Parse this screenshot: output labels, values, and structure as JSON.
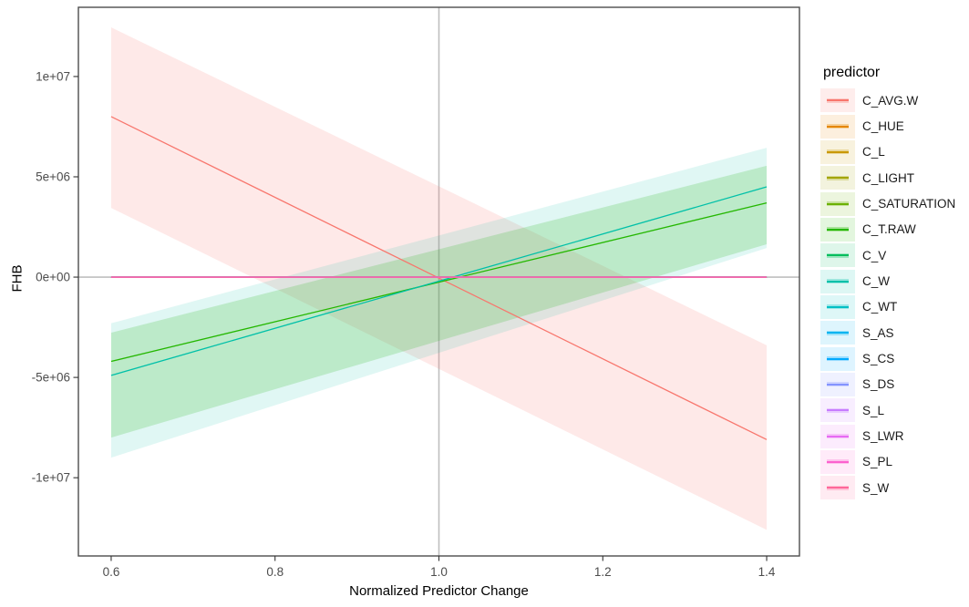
{
  "chart_data": {
    "type": "line",
    "title": "",
    "xlabel": "Normalized Predictor Change",
    "ylabel": "FHB",
    "x_ticks": [
      0.6,
      0.8,
      1.0,
      1.2,
      1.4
    ],
    "x_tick_labels": [
      "0.6",
      "0.8",
      "1.0",
      "1.2",
      "1.4"
    ],
    "y_ticks": [
      10000000,
      5000000,
      0,
      -5000000,
      -10000000
    ],
    "y_tick_labels": [
      "1e+07",
      "5e+06",
      "0e+00",
      "-5e+06",
      "-1e+07"
    ],
    "xlim": [
      0.56,
      1.44
    ],
    "ylim": [
      -13900000,
      13450000
    ],
    "x_data_range": [
      0.6,
      1.4
    ],
    "grid": false,
    "reference_lines": {
      "vline_x": 1.0,
      "hline_y": 0
    },
    "legend": {
      "title": "predictor",
      "position": "right"
    },
    "series": [
      {
        "name": "C_AVG.W",
        "color": "#F8766D",
        "x": [
          0.6,
          1.4
        ],
        "y": [
          8000000,
          -8100000
        ],
        "ribbon_upper": [
          12450000,
          -3400000
        ],
        "ribbon_lower": [
          3450000,
          -12600000
        ],
        "ribbon_alpha": 0.16
      },
      {
        "name": "C_HUE",
        "color": "#E58700",
        "x": [
          0.6,
          1.4
        ],
        "y": [
          0,
          0
        ],
        "ribbon_upper": null,
        "ribbon_lower": null,
        "ribbon_alpha": null
      },
      {
        "name": "C_L",
        "color": "#C99800",
        "x": [
          0.6,
          1.4
        ],
        "y": [
          0,
          0
        ],
        "ribbon_upper": null,
        "ribbon_lower": null,
        "ribbon_alpha": null
      },
      {
        "name": "C_LIGHT",
        "color": "#A3A500",
        "x": [
          0.6,
          1.4
        ],
        "y": [
          0,
          0
        ],
        "ribbon_upper": null,
        "ribbon_lower": null,
        "ribbon_alpha": null
      },
      {
        "name": "C_SATURATION",
        "color": "#6BB100",
        "x": [
          0.6,
          1.4
        ],
        "y": [
          0,
          0
        ],
        "ribbon_upper": null,
        "ribbon_lower": null,
        "ribbon_alpha": null
      },
      {
        "name": "C_T.RAW",
        "color": "#24B700",
        "x": [
          0.6,
          1.4
        ],
        "y": [
          -4200000,
          3700000
        ],
        "ribbon_upper": [
          -2770000,
          5550000
        ],
        "ribbon_lower": [
          -8000000,
          1640000
        ],
        "ribbon_alpha": 0.19
      },
      {
        "name": "C_V",
        "color": "#00BD5C",
        "x": [
          0.6,
          1.4
        ],
        "y": [
          0,
          0
        ],
        "ribbon_upper": null,
        "ribbon_lower": null,
        "ribbon_alpha": null
      },
      {
        "name": "C_W",
        "color": "#00C0A8",
        "x": [
          0.6,
          1.4
        ],
        "y": [
          -4900000,
          4500000
        ],
        "ribbon_upper": [
          -2300000,
          6450000
        ],
        "ribbon_lower": [
          -9000000,
          1450000
        ],
        "ribbon_alpha": 0.12
      },
      {
        "name": "C_WT",
        "color": "#00BFC4",
        "x": [
          0.6,
          1.4
        ],
        "y": [
          0,
          0
        ],
        "ribbon_upper": null,
        "ribbon_lower": null,
        "ribbon_alpha": null
      },
      {
        "name": "S_AS",
        "color": "#00B4F1",
        "x": [
          0.6,
          1.4
        ],
        "y": [
          0,
          0
        ],
        "ribbon_upper": null,
        "ribbon_lower": null,
        "ribbon_alpha": null
      },
      {
        "name": "S_CS",
        "color": "#00A9FF",
        "x": [
          0.6,
          1.4
        ],
        "y": [
          0,
          0
        ],
        "ribbon_upper": null,
        "ribbon_lower": null,
        "ribbon_alpha": null
      },
      {
        "name": "S_DS",
        "color": "#8494FF",
        "x": [
          0.6,
          1.4
        ],
        "y": [
          0,
          0
        ],
        "ribbon_upper": null,
        "ribbon_lower": null,
        "ribbon_alpha": null
      },
      {
        "name": "S_L",
        "color": "#C77CFF",
        "x": [
          0.6,
          1.4
        ],
        "y": [
          0,
          0
        ],
        "ribbon_upper": null,
        "ribbon_lower": null,
        "ribbon_alpha": null
      },
      {
        "name": "S_LWR",
        "color": "#E76BF3",
        "x": [
          0.6,
          1.4
        ],
        "y": [
          0,
          0
        ],
        "ribbon_upper": null,
        "ribbon_lower": null,
        "ribbon_alpha": null
      },
      {
        "name": "S_PL",
        "color": "#FC61CE",
        "x": [
          0.6,
          1.4
        ],
        "y": [
          0,
          0
        ],
        "ribbon_upper": null,
        "ribbon_lower": null,
        "ribbon_alpha": null
      },
      {
        "name": "S_W",
        "color": "#FF6799",
        "x": [
          0.6,
          1.4
        ],
        "y": [
          0,
          0
        ],
        "ribbon_upper": null,
        "ribbon_lower": null,
        "ribbon_alpha": null
      }
    ]
  },
  "colors": {
    "background": "#ffffff",
    "panel_border": "#4d4d4d",
    "reference_line": "#bfbfbf",
    "tick_mark": "#333333",
    "tick_label": "#4d4d4d",
    "legend_key_bg_alpha": 0.13,
    "legend_key_band_alpha": 0.3
  }
}
